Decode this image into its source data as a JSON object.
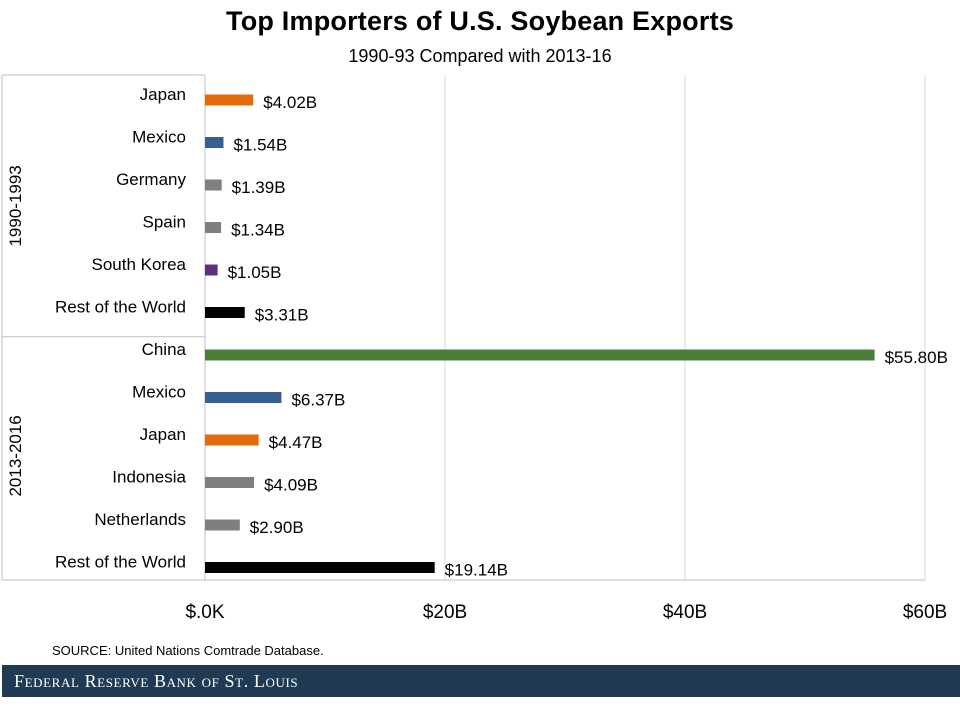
{
  "chart_data": {
    "type": "bar",
    "orientation": "horizontal",
    "title": "Top Importers of U.S. Soybean Exports",
    "subtitle": "1990-93 Compared with 2013-16",
    "groups": [
      {
        "name": "1990-1993",
        "items": [
          {
            "label": "Japan",
            "value": 4.02,
            "data_label": "$4.02B",
            "color": "#e36c0a"
          },
          {
            "label": "Mexico",
            "value": 1.54,
            "data_label": "$1.54B",
            "color": "#376092"
          },
          {
            "label": "Germany",
            "value": 1.39,
            "data_label": "$1.39B",
            "color": "#7f7f7f"
          },
          {
            "label": "Spain",
            "value": 1.34,
            "data_label": "$1.34B",
            "color": "#7f7f7f"
          },
          {
            "label": "South Korea",
            "value": 1.05,
            "data_label": "$1.05B",
            "color": "#5f2f7f"
          },
          {
            "label": "Rest of the World",
            "value": 3.31,
            "data_label": "$3.31B",
            "color": "#000000"
          }
        ]
      },
      {
        "name": "2013-2016",
        "items": [
          {
            "label": "China",
            "value": 55.8,
            "data_label": "$55.80B",
            "color": "#4a7f3a"
          },
          {
            "label": "Mexico",
            "value": 6.37,
            "data_label": "$6.37B",
            "color": "#376092"
          },
          {
            "label": "Japan",
            "value": 4.47,
            "data_label": "$4.47B",
            "color": "#e36c0a"
          },
          {
            "label": "Indonesia",
            "value": 4.09,
            "data_label": "$4.09B",
            "color": "#7f7f7f"
          },
          {
            "label": "Netherlands",
            "value": 2.9,
            "data_label": "$2.90B",
            "color": "#7f7f7f"
          },
          {
            "label": "Rest of the World",
            "value": 19.14,
            "data_label": "$19.14B",
            "color": "#000000"
          }
        ]
      }
    ],
    "xlim": [
      0,
      60
    ],
    "x_ticks": [
      {
        "value": 0,
        "label": "$.0K"
      },
      {
        "value": 20,
        "label": "$20B"
      },
      {
        "value": 40,
        "label": "$40B"
      },
      {
        "value": 60,
        "label": "$60B"
      }
    ],
    "grid": "vertical",
    "xlabel": "",
    "ylabel": ""
  },
  "source": "SOURCE: United Nations Comtrade Database.",
  "footer": "Federal Reserve Bank of St. Louis"
}
